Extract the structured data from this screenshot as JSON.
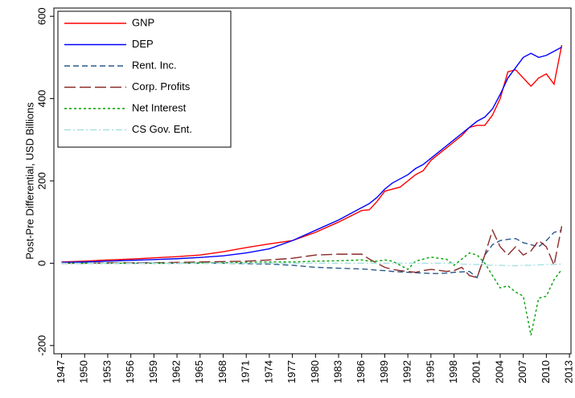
{
  "chart_data": {
    "type": "line",
    "ylabel": "Post-Pre Differential, USD Billions",
    "x": [
      1947,
      1950,
      1953,
      1956,
      1959,
      1962,
      1965,
      1968,
      1971,
      1974,
      1977,
      1980,
      1983,
      1986,
      1987,
      1988,
      1989,
      1990,
      1991,
      1992,
      1993,
      1994,
      1995,
      1996,
      1997,
      1998,
      1999,
      2000,
      2001,
      2002,
      2003,
      2004,
      2005,
      2006,
      2007,
      2008,
      2009,
      2010,
      2011,
      2012
    ],
    "series": [
      {
        "name": "GNP",
        "color": "#ff0000",
        "style": "solid",
        "values": [
          3,
          5,
          8,
          10,
          13,
          16,
          20,
          28,
          38,
          47,
          55,
          75,
          100,
          128,
          130,
          150,
          175,
          180,
          185,
          200,
          215,
          225,
          250,
          265,
          280,
          295,
          310,
          330,
          335,
          335,
          360,
          400,
          465,
          470,
          450,
          430,
          450,
          460,
          435,
          530
        ]
      },
      {
        "name": "DEP",
        "color": "#0000ff",
        "style": "solid",
        "values": [
          2,
          3,
          5,
          7,
          9,
          11,
          14,
          18,
          25,
          35,
          55,
          80,
          105,
          135,
          145,
          160,
          180,
          195,
          205,
          215,
          230,
          240,
          255,
          270,
          285,
          300,
          315,
          330,
          345,
          355,
          375,
          410,
          450,
          475,
          500,
          510,
          500,
          505,
          515,
          525
        ]
      },
      {
        "name": "Rent. Inc.",
        "color": "#2a5a8a",
        "style": "dashed",
        "values": [
          0,
          0,
          0,
          0,
          0,
          0,
          0,
          0,
          -1,
          -2,
          -5,
          -10,
          -12,
          -14,
          -15,
          -17,
          -18,
          -20,
          -21,
          -22,
          -23,
          -24,
          -25,
          -25,
          -24,
          -22,
          -21,
          -20,
          -35,
          20,
          45,
          55,
          58,
          60,
          50,
          45,
          40,
          55,
          75,
          80
        ]
      },
      {
        "name": "Corp. Profits",
        "color": "#8b2a2a",
        "style": "longdash",
        "values": [
          0,
          0,
          1,
          1,
          1,
          2,
          3,
          4,
          5,
          8,
          12,
          20,
          22,
          22,
          10,
          0,
          -10,
          -15,
          -18,
          -20,
          -22,
          -18,
          -15,
          -17,
          -20,
          -18,
          -10,
          -30,
          -35,
          20,
          80,
          40,
          20,
          40,
          20,
          30,
          55,
          40,
          -5,
          90
        ]
      },
      {
        "name": "Net Interest",
        "color": "#00a000",
        "style": "dotted",
        "values": [
          0,
          0,
          0,
          0,
          0,
          0,
          1,
          1,
          2,
          3,
          3,
          5,
          6,
          8,
          5,
          5,
          8,
          5,
          -5,
          -15,
          5,
          10,
          15,
          12,
          10,
          -5,
          10,
          25,
          20,
          0,
          -30,
          -60,
          -55,
          -70,
          -80,
          -175,
          -85,
          -80,
          -40,
          -15
        ]
      },
      {
        "name": "CS Gov. Ent.",
        "color": "#a8e0e0",
        "style": "dashdot",
        "values": [
          0,
          0,
          0,
          0,
          0,
          0,
          0,
          0,
          0,
          0,
          0,
          0,
          0,
          0,
          0,
          0,
          0,
          0,
          0,
          0,
          0,
          0,
          0,
          0,
          0,
          0,
          -2,
          -3,
          -3,
          -4,
          -5,
          -5,
          -6,
          -6,
          -5,
          -5,
          -4,
          -3,
          -3,
          -2
        ]
      }
    ],
    "xlim": [
      1946,
      2013.2
    ],
    "xticks": [
      1947,
      1950,
      1953,
      1956,
      1959,
      1962,
      1965,
      1968,
      1971,
      1974,
      1977,
      1980,
      1983,
      1986,
      1989,
      1992,
      1995,
      1998,
      2001,
      2004,
      2007,
      2010,
      2013
    ],
    "ylim": [
      -220,
      620
    ],
    "yticks": [
      -200,
      0,
      200,
      400,
      600
    ],
    "legend": "upper left"
  }
}
